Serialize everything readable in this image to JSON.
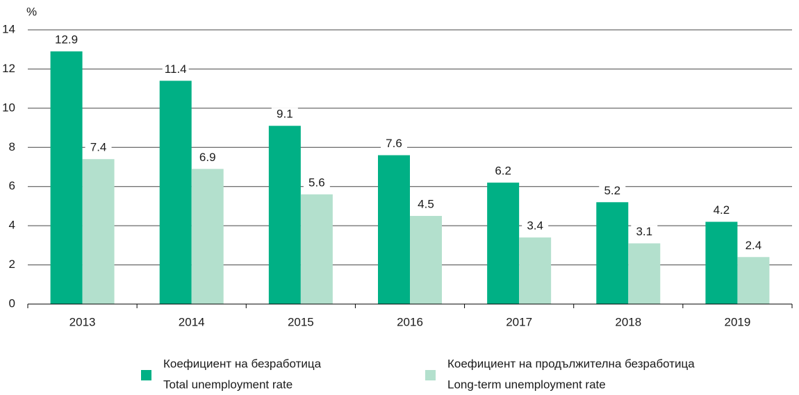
{
  "chart_data": {
    "type": "bar",
    "y_unit": "%",
    "categories": [
      "2013",
      "2014",
      "2015",
      "2016",
      "2017",
      "2018",
      "2019"
    ],
    "series": [
      {
        "name": [
          "Коефициент на безработица",
          "Total unemployment rate"
        ],
        "color": "#00b085",
        "values": [
          12.9,
          11.4,
          9.1,
          7.6,
          6.2,
          5.2,
          4.2
        ]
      },
      {
        "name": [
          "Коефициент на продължителна безработица",
          "Long-term unemployment rate"
        ],
        "color": "#b3e0cd",
        "values": [
          7.4,
          6.9,
          5.6,
          4.5,
          3.4,
          3.1,
          2.4
        ]
      }
    ],
    "ylim": [
      0,
      14
    ],
    "yticks": [
      0,
      2,
      4,
      6,
      8,
      10,
      12,
      14
    ],
    "grid": true,
    "data_labels": true,
    "legend": "bottom"
  }
}
